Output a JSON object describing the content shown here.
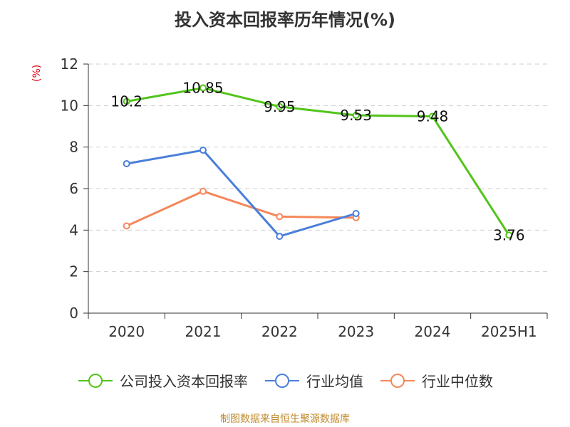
{
  "title": "投入资本回报率历年情况(%)",
  "unit_label": "(%)",
  "source": "制图数据来自恒生聚源数据库",
  "chart_data": {
    "type": "line",
    "title": "投入资本回报率历年情况(%)",
    "ylabel": "(%)",
    "xlabel": "",
    "categories": [
      "2020",
      "2021",
      "2022",
      "2023",
      "2024",
      "2025H1"
    ],
    "ylim": [
      0,
      12
    ],
    "yticks": [
      0,
      2,
      4,
      6,
      8,
      10,
      12
    ],
    "grid": true,
    "legend_position": "bottom",
    "series": [
      {
        "name": "公司投入资本回报率",
        "color": "#52c41a",
        "values": [
          10.2,
          10.85,
          9.95,
          9.53,
          9.48,
          3.76
        ],
        "labels": [
          "10.2",
          "10.85",
          "9.95",
          "9.53",
          "9.48",
          "3.76"
        ]
      },
      {
        "name": "行业均值",
        "color": "#4a7fdb",
        "values": [
          7.2,
          7.85,
          3.7,
          4.8,
          null,
          null
        ]
      },
      {
        "name": "行业中位数",
        "color": "#f5875a",
        "values": [
          4.2,
          5.87,
          4.65,
          4.6,
          null,
          null
        ]
      }
    ]
  }
}
